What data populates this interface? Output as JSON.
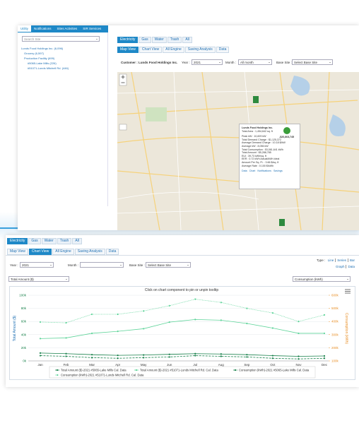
{
  "back_panel": {
    "sidebar_tabs": [
      "Utility",
      "Notifications",
      "Sites Activities",
      "SIR Services"
    ],
    "search_placeholder": "Search Site",
    "tree": [
      "Lunds Food Holdings Inc. (6,096)",
      "Grocery (6,597)",
      "Production Facility (699)",
      "#5065-Lake Mills (226)",
      "#51071-Lunds Mitchell Rd. (446)"
    ],
    "utility_tabs": [
      "Electricity",
      "Gas",
      "Water",
      "Trash",
      "All"
    ],
    "view_tabs": [
      "Map View",
      "Chart View",
      "All Engine",
      "Saving Analysis",
      "Data"
    ],
    "customer": "Customer : Lunds Food Holdings Inc.",
    "year_label": "Year :",
    "year": "2021",
    "month_label": "Month :",
    "month": "All month",
    "base_site_label": "Base Site :",
    "base_site": "Select Base Site",
    "popup": {
      "title": "Lunds Food Holdings Inc.",
      "area": "Total Area : 1,454,642 sq. ft",
      "lines": [
        "Peak kW : 10,829 kW",
        "Total Demand Charge : $1,125,372",
        "Average Demand Charge : 10.18 $/kW",
        "Average kW : 8,056 kW",
        "Total Consumption : 53,061,641 kWh",
        "Total Amount : $5,288,785",
        "EUI : 39.73 kWh/sq. ft",
        "EER : 0.72 kWh Actual/kWh Ideal",
        "Amount Per Sq. Ft. : 3.66 $/sq. ft",
        "Average Rate : 0.100 $/kWh"
      ],
      "amount": "-$20,803,745",
      "links": [
        "Data",
        "Chart",
        "Notifications",
        "Savings"
      ]
    }
  },
  "front_panel": {
    "utility_tabs": [
      "Electricity",
      "Gas",
      "Water",
      "Trash",
      "All"
    ],
    "view_tabs": [
      "Map View",
      "Chart View",
      "All Engine",
      "Saving Analysis",
      "Data"
    ],
    "year_label": "Year :",
    "year": "2021",
    "month_label": "Month :",
    "base_site_label": "Base Site :",
    "base_site": "Select Base Site",
    "type_label": "Type :",
    "type_options": [
      "Line",
      "Series",
      "Bar"
    ],
    "display_options": [
      "Graph",
      "Data"
    ],
    "left_select": "Total Amount ($)",
    "right_select": "Consumption (kWh)"
  },
  "chart_data": {
    "type": "line",
    "title": "Click on chart component to pin or unpin tooltip",
    "categories": [
      "Jan",
      "Feb",
      "Mar",
      "Apr",
      "May",
      "Jun",
      "Jul",
      "Aug",
      "Sep",
      "Oct",
      "Nov",
      "Dec"
    ],
    "y_label": "Total Amount ($)",
    "y2_label": "Consumption (kWh)",
    "ylim": [
      0,
      100000
    ],
    "yticks": [
      {
        "value": 0,
        "label": "0k"
      },
      {
        "value": 20000,
        "label": "20k"
      },
      {
        "value": 40000,
        "label": "40k"
      },
      {
        "value": 60000,
        "label": "60k"
      },
      {
        "value": 80000,
        "label": "80k"
      },
      {
        "value": 100000,
        "label": "100k"
      }
    ],
    "y2lim": [
      100000,
      600000
    ],
    "y2ticks": [
      {
        "value": 100000,
        "label": "100k"
      },
      {
        "value": 200000,
        "label": "200k"
      },
      {
        "value": 300000,
        "label": "300k"
      },
      {
        "value": 400000,
        "label": "400k"
      },
      {
        "value": 500000,
        "label": "500k"
      },
      {
        "value": 600000,
        "label": "600k"
      }
    ],
    "grid": true,
    "series": [
      {
        "name": "Total Amount ($)-2021 #5065-Lake Mills Cal. Data",
        "color": "#17804a",
        "dash": "solid",
        "values": [
          12000,
          11000,
          9500,
          8500,
          9000,
          10000,
          11000,
          10500,
          9500,
          8000,
          7000,
          7500
        ]
      },
      {
        "name": "Total Amount ($)-2021 #51071-Lunds Mitchell Rd. Cal. Data",
        "color": "#5fd49a",
        "dash": "solid",
        "values": [
          34000,
          35000,
          42000,
          45000,
          49000,
          59000,
          63000,
          62000,
          57000,
          50000,
          42000,
          42000
        ]
      },
      {
        "name": "Consumption (kWh)-2021 #5065-Lake Mills Cal. Data",
        "color": "#17804a",
        "dash": "dashed",
        "axis": "y2",
        "values": [
          140000,
          135000,
          125000,
          120000,
          125000,
          130000,
          140000,
          135000,
          130000,
          120000,
          115000,
          120000
        ]
      },
      {
        "name": "Consumption (kWh)-2021 #51071-Lunds Mitchell Rd. Cal. Data",
        "color": "#5fd49a",
        "dash": "dotted",
        "axis": "y2",
        "values": [
          396000,
          390000,
          455000,
          455000,
          480000,
          520000,
          570000,
          545000,
          500000,
          465000,
          400000,
          450000
        ]
      }
    ]
  }
}
